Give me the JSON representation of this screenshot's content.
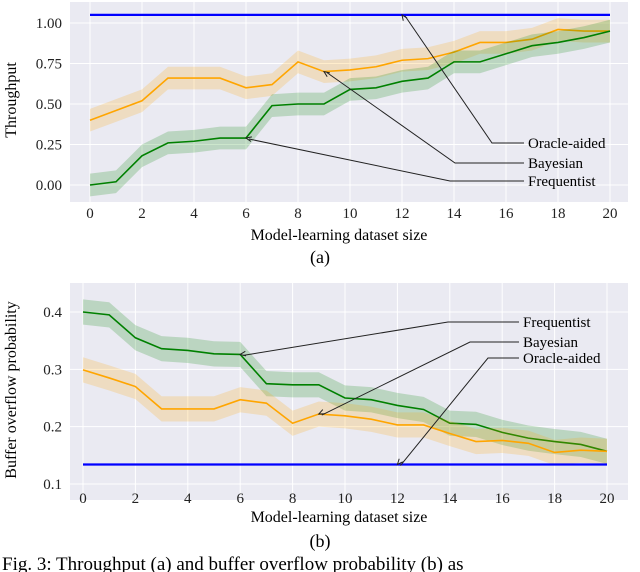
{
  "chart_data": [
    {
      "type": "line",
      "panel_label": "(a)",
      "xlabel": "Model-learning dataset size",
      "ylabel": "Throughput",
      "xlim": [
        0,
        20
      ],
      "ylim": [
        -0.07,
        1.1
      ],
      "xticks": [
        0,
        2,
        4,
        6,
        8,
        10,
        12,
        14,
        16,
        18,
        20
      ],
      "yticks": [
        "0.00",
        "0.25",
        "0.50",
        "0.75",
        "1.00"
      ],
      "grid": true,
      "x": [
        0,
        1,
        2,
        3,
        4,
        5,
        6,
        7,
        8,
        9,
        10,
        11,
        12,
        13,
        14,
        15,
        16,
        17,
        18,
        19,
        20
      ],
      "series": [
        {
          "name": "Bayesian",
          "color": "#ffa500",
          "band": 0.07,
          "values": [
            0.4,
            0.46,
            0.52,
            0.66,
            0.66,
            0.66,
            0.6,
            0.62,
            0.76,
            0.7,
            0.71,
            0.73,
            0.77,
            0.78,
            0.82,
            0.88,
            0.88,
            0.9,
            0.96,
            0.95,
            0.95
          ]
        },
        {
          "name": "Frequentist",
          "color": "#008000",
          "band": 0.07,
          "values": [
            0.0,
            0.02,
            0.18,
            0.26,
            0.27,
            0.29,
            0.29,
            0.49,
            0.5,
            0.5,
            0.59,
            0.6,
            0.64,
            0.66,
            0.76,
            0.76,
            0.81,
            0.86,
            0.88,
            0.91,
            0.95
          ]
        },
        {
          "name": "Oracle-aided",
          "color": "#0000ff",
          "band": 0,
          "values": [
            1.05,
            1.05,
            1.05,
            1.05,
            1.05,
            1.05,
            1.05,
            1.05,
            1.05,
            1.05,
            1.05,
            1.05,
            1.05,
            1.05,
            1.05,
            1.05,
            1.05,
            1.05,
            1.05,
            1.05,
            1.05
          ]
        }
      ],
      "annotations": [
        {
          "text": "Oracle-aided",
          "x": 12,
          "y": 1.05
        },
        {
          "text": "Bayesian",
          "x": 9,
          "y": 0.7
        },
        {
          "text": "Frequentist",
          "x": 6,
          "y": 0.29
        }
      ]
    },
    {
      "type": "line",
      "panel_label": "(b)",
      "xlabel": "Model-learning dataset size",
      "ylabel": "Buffer overflow probability",
      "xlim": [
        0,
        20
      ],
      "ylim": [
        0.095,
        0.44
      ],
      "xticks": [
        0,
        2,
        4,
        6,
        8,
        10,
        12,
        14,
        16,
        18,
        20
      ],
      "yticks": [
        "0.1",
        "0.2",
        "0.3",
        "0.4"
      ],
      "grid": true,
      "x": [
        0,
        1,
        2,
        3,
        4,
        5,
        6,
        7,
        8,
        9,
        10,
        11,
        12,
        13,
        14,
        15,
        16,
        17,
        18,
        19,
        20
      ],
      "series": [
        {
          "name": "Frequentist",
          "color": "#008000",
          "band": 0.022,
          "values": [
            0.4,
            0.395,
            0.355,
            0.336,
            0.333,
            0.327,
            0.326,
            0.275,
            0.273,
            0.273,
            0.25,
            0.247,
            0.237,
            0.23,
            0.206,
            0.204,
            0.19,
            0.18,
            0.174,
            0.169,
            0.157
          ]
        },
        {
          "name": "Bayesian",
          "color": "#ffa500",
          "band": 0.022,
          "values": [
            0.299,
            0.285,
            0.27,
            0.231,
            0.231,
            0.231,
            0.247,
            0.241,
            0.206,
            0.222,
            0.219,
            0.213,
            0.203,
            0.203,
            0.188,
            0.174,
            0.176,
            0.171,
            0.155,
            0.159,
            0.157
          ]
        },
        {
          "name": "Oracle-aided",
          "color": "#0000ff",
          "band": 0,
          "values": [
            0.134,
            0.134,
            0.134,
            0.134,
            0.134,
            0.134,
            0.134,
            0.134,
            0.134,
            0.134,
            0.134,
            0.134,
            0.134,
            0.134,
            0.134,
            0.134,
            0.134,
            0.134,
            0.134,
            0.134,
            0.134
          ]
        }
      ],
      "annotations": [
        {
          "text": "Frequentist",
          "x": 6,
          "y": 0.326
        },
        {
          "text": "Bayesian",
          "x": 9,
          "y": 0.222
        },
        {
          "text": "Oracle-aided",
          "x": 12,
          "y": 0.134
        }
      ]
    }
  ],
  "caption": "Fig. 3: Throughput (a) and buffer overflow probability (b) as"
}
